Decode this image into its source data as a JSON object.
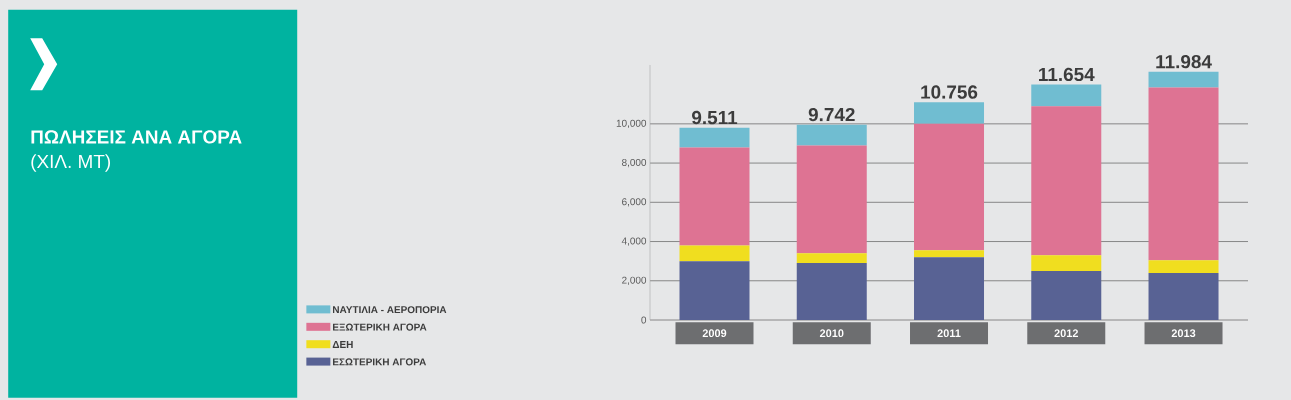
{
  "chart_data": {
    "type": "bar",
    "stacked": true,
    "title": "ΠΩΛΗΣΕΙΣ ΑΝΑ ΑΓΟΡΑ",
    "subtitle": "(ΧΙΛ. ΜΤ)",
    "categories": [
      "2009",
      "2010",
      "2011",
      "2012",
      "2013"
    ],
    "series": [
      {
        "name": "ΕΣΩΤΕΡΙΚΗ ΑΓΟΡΑ",
        "color": "#586294",
        "values": [
          3000,
          2900,
          3200,
          2500,
          2400
        ]
      },
      {
        "name": "ΔΕΗ",
        "color": "#f0de1f",
        "values": [
          800,
          500,
          350,
          800,
          650
        ]
      },
      {
        "name": "ΕΞΩΤΕΡΙΚΗ ΑΓΟΡΑ",
        "color": "#de7393",
        "values": [
          5000,
          5500,
          6450,
          7600,
          8800
        ]
      },
      {
        "name": "ΝΑΥΤΙΛΙΑ - ΑΕΡΟΠΟΡΙΑ",
        "color": "#70bdd1",
        "values": [
          1000,
          1050,
          1100,
          1100,
          800
        ]
      }
    ],
    "annotations": [
      {
        "text": "9.511",
        "x": "2009",
        "y": 9800
      },
      {
        "text": "9.742",
        "x": "2010",
        "y": 9950
      },
      {
        "text": "10.756",
        "x": "2011",
        "y": 11100
      },
      {
        "text": "11.654",
        "x": "2012",
        "y": 12000
      },
      {
        "text": "11.984",
        "x": "2013",
        "y": 12650
      }
    ],
    "ylim": [
      0,
      13000
    ],
    "yticks": [
      {
        "value": 0,
        "label": "0"
      },
      {
        "value": 2000,
        "label": "2,000"
      },
      {
        "value": 4000,
        "label": "4,000"
      },
      {
        "value": 6000,
        "label": "6,000"
      },
      {
        "value": 8000,
        "label": "8,000"
      },
      {
        "value": 10000,
        "label": "10,000"
      }
    ],
    "grid": "y",
    "legend": "bottom left"
  }
}
